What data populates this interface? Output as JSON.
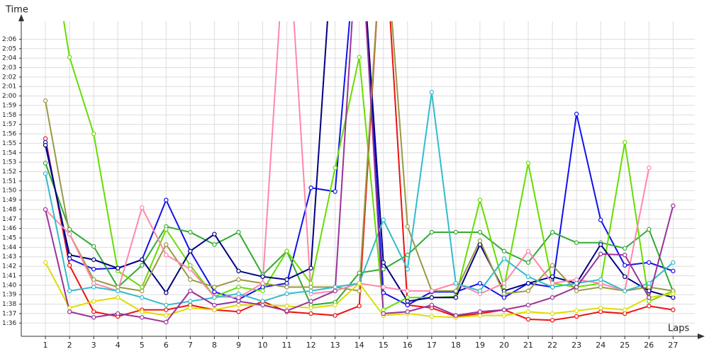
{
  "chart_data": {
    "type": "line",
    "y_label": "Time",
    "x_label": "Laps",
    "x": [
      1,
      2,
      3,
      4,
      5,
      6,
      7,
      8,
      9,
      10,
      11,
      12,
      13,
      14,
      15,
      16,
      17,
      18,
      19,
      20,
      21,
      22,
      23,
      24,
      25,
      26,
      27
    ],
    "xlim": [
      0,
      27.9
    ],
    "xticks": [
      1,
      2,
      3,
      4,
      5,
      6,
      7,
      8,
      9,
      10,
      11,
      12,
      13,
      14,
      15,
      16,
      17,
      18,
      19,
      20,
      21,
      22,
      23,
      24,
      25,
      26,
      27
    ],
    "ylim": [
      94.6,
      127.9
    ],
    "yticks": [
      {
        "value": 96,
        "label": "1:36"
      },
      {
        "value": 97,
        "label": "1:37"
      },
      {
        "value": 98,
        "label": "1:38"
      },
      {
        "value": 99,
        "label": "1:39"
      },
      {
        "value": 100,
        "label": "1:40"
      },
      {
        "value": 101,
        "label": "1:41"
      },
      {
        "value": 102,
        "label": "1:42"
      },
      {
        "value": 103,
        "label": "1:43"
      },
      {
        "value": 104,
        "label": "1:44"
      },
      {
        "value": 105,
        "label": "1:45"
      },
      {
        "value": 106,
        "label": "1:46"
      },
      {
        "value": 107,
        "label": "1:47"
      },
      {
        "value": 108,
        "label": "1:48"
      },
      {
        "value": 109,
        "label": "1:49"
      },
      {
        "value": 110,
        "label": "1:50"
      },
      {
        "value": 111,
        "label": "1:51"
      },
      {
        "value": 112,
        "label": "1:52"
      },
      {
        "value": 113,
        "label": "1:53"
      },
      {
        "value": 114,
        "label": "1:54"
      },
      {
        "value": 115,
        "label": "1:55"
      },
      {
        "value": 116,
        "label": "1:56"
      },
      {
        "value": 117,
        "label": "1:57"
      },
      {
        "value": 118,
        "label": "1:58"
      },
      {
        "value": 119,
        "label": "1:59"
      },
      {
        "value": 120,
        "label": "2:00"
      },
      {
        "value": 121,
        "label": "2:01"
      },
      {
        "value": 122,
        "label": "2:02"
      },
      {
        "value": 123,
        "label": "2:03"
      },
      {
        "value": 124,
        "label": "2:04"
      },
      {
        "value": 125,
        "label": "2:05"
      },
      {
        "value": 126,
        "label": "2:06"
      }
    ],
    "grid": true,
    "series": [
      {
        "color": "#ee1111",
        "values": [
          115.5,
          102.1,
          97.2,
          96.7,
          97.4,
          97.4,
          97.9,
          97.4,
          97.2,
          98.3,
          97.2,
          97.0,
          96.8,
          97.8,
          140,
          97.9,
          97.6,
          96.7,
          97.0,
          97.4,
          96.4,
          96.3,
          96.7,
          97.2,
          97.0,
          97.8,
          97.4
        ]
      },
      {
        "color": "#1111ee",
        "values": [
          115.1,
          102.8,
          101.7,
          101.8,
          102.7,
          109.0,
          103.6,
          99.3,
          98.5,
          99.8,
          100.2,
          110.3,
          109.9,
          140,
          99.2,
          97.9,
          99.3,
          99.3,
          100.2,
          98.7,
          100.2,
          99.8,
          118.1,
          106.9,
          102.1,
          102.4,
          101.5
        ]
      },
      {
        "color": "#33aa33",
        "values": [
          112.9,
          105.9,
          104.1,
          99.8,
          102.1,
          106.2,
          105.6,
          104.3,
          105.6,
          101.1,
          103.6,
          97.9,
          98.2,
          101.3,
          101.7,
          103.2,
          105.6,
          105.6,
          105.6,
          103.6,
          102.4,
          105.6,
          104.5,
          104.5,
          103.9,
          105.9,
          99.3
        ]
      },
      {
        "color": "#66dd00",
        "values": [
          140,
          124.1,
          116.0,
          101.5,
          99.8,
          105.9,
          102.1,
          98.8,
          99.8,
          99.4,
          103.6,
          100.2,
          112.4,
          124.1,
          97.4,
          98.7,
          98.7,
          98.8,
          109.0,
          99.8,
          112.9,
          100.2,
          99.8,
          100.2,
          115.1,
          98.3,
          99.4
        ]
      },
      {
        "color": "#000080",
        "values": [
          114.8,
          103.2,
          102.7,
          101.8,
          102.7,
          99.2,
          103.6,
          105.4,
          101.5,
          100.9,
          100.6,
          101.8,
          140,
          140,
          102.4,
          98.3,
          98.7,
          98.7,
          104.3,
          99.4,
          100.2,
          100.9,
          100.2,
          104.3,
          100.9,
          99.4,
          98.7
        ]
      },
      {
        "color": "#999944",
        "values": [
          119.5,
          105.4,
          100.6,
          99.8,
          99.4,
          104.3,
          100.6,
          99.8,
          100.6,
          100.2,
          99.8,
          99.8,
          99.8,
          99.4,
          140,
          106.2,
          99.4,
          99.4,
          104.7,
          99.1,
          99.4,
          102.1,
          99.4,
          99.8,
          99.4,
          99.8,
          99.4
        ]
      },
      {
        "color": "#ff88aa",
        "values": [
          108.0,
          105.4,
          100.2,
          99.4,
          108.2,
          103.2,
          101.7,
          98.8,
          98.7,
          100.2,
          140,
          99.1,
          99.4,
          100.2,
          99.8,
          99.4,
          99.4,
          100.2,
          99.1,
          100.2,
          103.6,
          100.2,
          100.6,
          100.2,
          99.4,
          112.4,
          null
        ]
      },
      {
        "color": "#33bbcc",
        "values": [
          111.8,
          99.4,
          99.8,
          99.4,
          98.7,
          97.9,
          98.3,
          98.7,
          99.1,
          98.3,
          99.1,
          99.4,
          99.8,
          100.2,
          106.9,
          101.7,
          120.4,
          100.2,
          99.4,
          102.8,
          100.9,
          99.8,
          100.2,
          100.6,
          99.4,
          100.2,
          102.4
        ]
      },
      {
        "color": "#dddd00",
        "values": [
          102.4,
          97.6,
          98.3,
          98.7,
          97.2,
          96.8,
          97.6,
          97.4,
          97.9,
          97.9,
          97.8,
          97.6,
          97.9,
          100.2,
          96.8,
          97.0,
          96.7,
          96.6,
          96.8,
          96.8,
          97.2,
          97.0,
          97.3,
          97.6,
          97.4,
          98.7,
          99.1
        ]
      },
      {
        "color": "#993399",
        "values": [
          108.0,
          97.2,
          96.6,
          97.0,
          96.6,
          96.1,
          99.4,
          97.9,
          98.3,
          97.9,
          97.3,
          98.3,
          99.4,
          140,
          97.0,
          97.2,
          97.9,
          96.8,
          97.2,
          97.4,
          97.9,
          98.7,
          99.8,
          103.3,
          103.2,
          98.7,
          108.4
        ]
      }
    ]
  }
}
